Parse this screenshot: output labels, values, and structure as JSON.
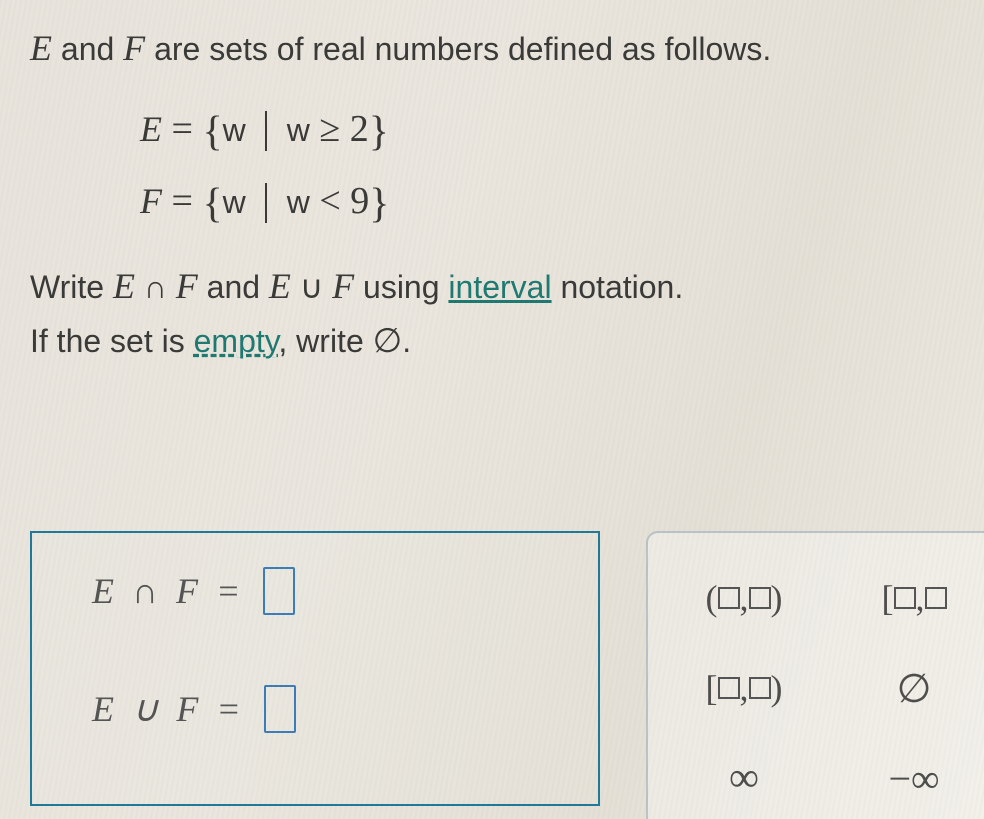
{
  "intro": {
    "part1": "E",
    "part2": " and ",
    "part3": "F",
    "part4": " are sets of real numbers defined as follows."
  },
  "setE": {
    "lhs": "E",
    "eq": " = ",
    "var": "w",
    "cond_var": "w",
    "rel": " ≥ ",
    "val": "2"
  },
  "setF": {
    "lhs": "F",
    "eq": " = ",
    "var": "w",
    "cond_var": "w",
    "rel": " < ",
    "val": "9"
  },
  "instr": {
    "line1_a": "Write ",
    "line1_b": "E",
    "line1_c": " ∩ ",
    "line1_d": "F",
    "line1_e": " and ",
    "line1_f": "E",
    "line1_g": " ∪ ",
    "line1_h": "F",
    "line1_i": " using ",
    "line1_link": "interval",
    "line1_j": " notation.",
    "line2_a": "If the set is ",
    "line2_link": "empty",
    "line2_b": ", write ",
    "line2_sym": "∅",
    "line2_c": "."
  },
  "answers": {
    "row1_lhs": "E  ∩  F  = ",
    "row2_lhs": "E  ∪  F  = "
  },
  "palette": {
    "open_open_l": "(",
    "open_open_r": ")",
    "closed_closed_l": "[",
    "closed_open_l": "[",
    "closed_open_r": ")",
    "empty": "∅",
    "inf": "∞",
    "neg_inf": "−∞",
    "comma": ","
  },
  "colors": {
    "link": "#1f7a72",
    "box_border": "#1f7a9a",
    "slot_border": "#3d7db8",
    "palette_border": "#b9c3c8",
    "text": "#3a3a38"
  }
}
